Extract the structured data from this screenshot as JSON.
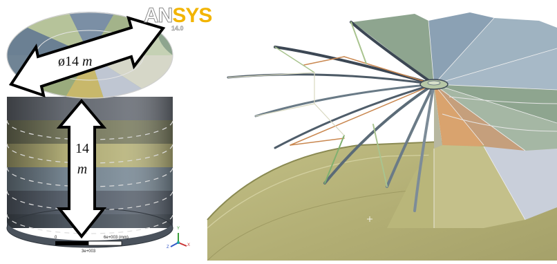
{
  "logo": {
    "brand_an": "AN",
    "brand_sys": "SYS",
    "version": "14.0"
  },
  "dimensions": {
    "diameter_symbol": "ø14",
    "diameter_unit": "m",
    "height_value": "14",
    "height_unit": "m"
  },
  "scale_bar": {
    "start": "0",
    "end": "6e+003 (mm)",
    "mid": "3e+003"
  },
  "triad": {
    "y": "Y",
    "x": "X",
    "z": "Z"
  },
  "colors": {
    "steel_green": "#8ea58f",
    "steel_blue": "#8ba1b4",
    "steel_yellow": "#b9b67a",
    "steel_orange": "#d9a36e",
    "wall_inner": "#b3b07a",
    "frame_dark": "#3c4754"
  }
}
